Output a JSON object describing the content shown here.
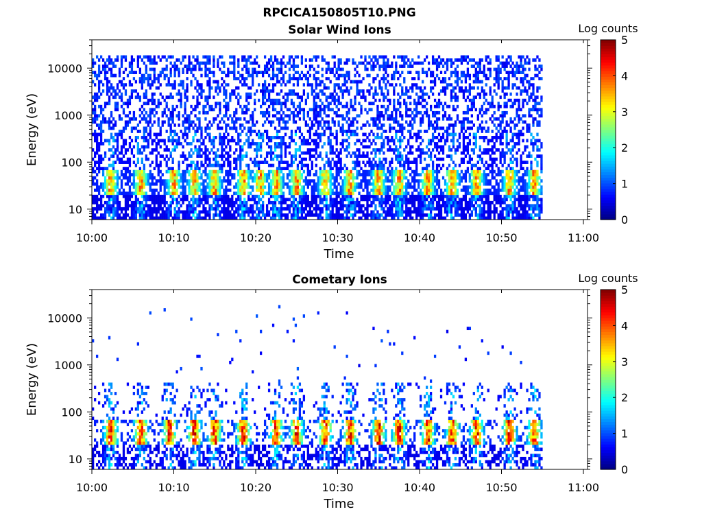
{
  "figure": {
    "title": "RPCICA150805T10.PNG"
  },
  "chart_data": [
    {
      "type": "heatmap",
      "title": "Solar Wind Ions",
      "xlabel": "Time",
      "ylabel": "Energy (eV)",
      "x_tick_labels": [
        "10:00",
        "10:10",
        "10:20",
        "10:30",
        "10:40",
        "10:50",
        "11:00"
      ],
      "x_ticks_minutes": [
        0,
        10,
        20,
        30,
        40,
        50,
        60
      ],
      "xlim_minutes": [
        0,
        60.5
      ],
      "data_end_minutes": 55,
      "y_scale": "log",
      "ylim": [
        6,
        40000
      ],
      "y_tick_labels": [
        "10",
        "100",
        "1000",
        "10000"
      ],
      "y_ticks": [
        10,
        100,
        1000,
        10000
      ],
      "colorbar": {
        "label": "Log counts",
        "min": 0,
        "max": 5,
        "tick_labels": [
          "0",
          "1",
          "2",
          "3",
          "4",
          "5"
        ],
        "colormap": "jet"
      },
      "features": {
        "background_level": 0.2,
        "high_energy_coverage": "dense",
        "band_energy_range": [
          20,
          70
        ],
        "band_peak_level": 3.5,
        "burst_times_minutes": [
          2.3,
          6,
          10,
          12.5,
          15,
          18.5,
          20.5,
          22.5,
          25,
          28.5,
          31.5,
          35,
          37.5,
          41,
          44,
          47,
          51,
          54
        ]
      }
    },
    {
      "type": "heatmap",
      "title": "Cometary Ions",
      "xlabel": "Time",
      "ylabel": "Energy (eV)",
      "x_tick_labels": [
        "10:00",
        "10:10",
        "10:20",
        "10:30",
        "10:40",
        "10:50",
        "11:00"
      ],
      "x_ticks_minutes": [
        0,
        10,
        20,
        30,
        40,
        50,
        60
      ],
      "xlim_minutes": [
        0,
        60.5
      ],
      "data_end_minutes": 55,
      "y_scale": "log",
      "ylim": [
        6,
        40000
      ],
      "y_tick_labels": [
        "10",
        "100",
        "1000",
        "10000"
      ],
      "y_ticks": [
        10,
        100,
        1000,
        10000
      ],
      "colorbar": {
        "label": "Log counts",
        "min": 0,
        "max": 5,
        "tick_labels": [
          "0",
          "1",
          "2",
          "3",
          "4",
          "5"
        ],
        "colormap": "jet"
      },
      "features": {
        "background_level": 0.2,
        "high_energy_coverage": "sparse",
        "band_energy_range": [
          20,
          70
        ],
        "band_peak_level": 4.2,
        "burst_times_minutes": [
          2.3,
          6,
          9.5,
          12.5,
          15,
          18.5,
          22.5,
          25,
          28.5,
          31.5,
          35,
          37.5,
          41,
          44,
          47,
          51,
          54
        ]
      }
    }
  ],
  "colors": {
    "background": "#ffffff",
    "axes": "#000000",
    "colormap": [
      "#00007f",
      "#0000ff",
      "#007fff",
      "#00ffff",
      "#7fff7f",
      "#ffff00",
      "#ff7f00",
      "#ff0000",
      "#7f0000"
    ]
  }
}
